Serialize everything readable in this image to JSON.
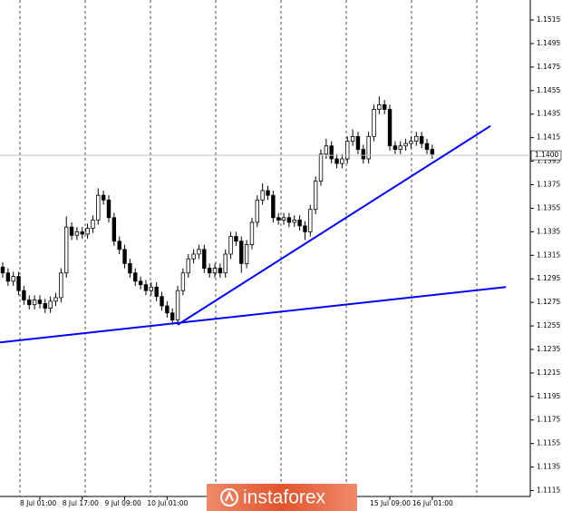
{
  "chart_data": {
    "type": "candlestick",
    "categories": [
      null,
      null,
      null,
      null,
      null,
      null,
      null,
      "8 Jul 01:00",
      null,
      null,
      null,
      null,
      null,
      null,
      null,
      "8 Jul 17:00",
      null,
      null,
      null,
      null,
      null,
      null,
      null,
      "9 Jul 09:00",
      null,
      null,
      null,
      null,
      null,
      null,
      null,
      "10 Jul 01:00",
      null,
      null,
      null,
      null,
      null,
      null,
      null,
      null,
      null,
      null,
      null,
      null,
      null,
      null,
      null,
      null,
      null,
      null,
      null,
      null,
      null,
      null,
      null,
      null,
      null,
      null,
      null,
      null,
      null,
      null,
      null,
      null,
      null,
      null,
      null,
      null,
      null,
      null,
      null,
      null,
      null,
      "15 Jul 09:00",
      null,
      null,
      null,
      null,
      null,
      null,
      null,
      "16 Jul 01:00"
    ],
    "series": [
      {
        "open": [
          1.1305,
          1.13,
          1.1293,
          1.1297,
          1.1285,
          1.1277,
          1.1273,
          1.1277,
          1.1274,
          1.127,
          1.1276,
          1.1279,
          1.13,
          1.1339,
          1.1332,
          1.1335,
          1.1333,
          1.1338,
          1.1345,
          1.1366,
          1.1362,
          1.1347,
          1.1327,
          1.132,
          1.1308,
          1.13,
          1.1293,
          1.129,
          1.1285,
          1.1288,
          1.128,
          1.1272,
          1.1266,
          1.126,
          1.1285,
          1.13,
          1.1312,
          1.1316,
          1.132,
          1.1304,
          1.13,
          1.1304,
          1.13,
          1.1316,
          1.1331,
          1.1327,
          1.1308,
          1.1324,
          1.1343,
          1.1362,
          1.137,
          1.1366,
          1.1347,
          1.1345,
          1.1347,
          1.1343,
          1.1345,
          1.134,
          1.1335,
          1.1354,
          1.1378,
          1.1401,
          1.1408,
          1.1397,
          1.1393,
          1.1397,
          1.1412,
          1.1416,
          1.1405,
          1.1397,
          1.1416,
          1.1439,
          1.1443,
          1.1439,
          1.1408,
          1.1405,
          1.1408,
          1.141,
          1.1412,
          1.1416,
          1.141,
          1.1405
        ],
        "high": [
          1.1309,
          1.1304,
          1.1301,
          1.1301,
          1.1289,
          1.1281,
          1.1281,
          1.1281,
          1.1278,
          1.128,
          1.1283,
          1.1304,
          1.1348,
          1.1343,
          1.1339,
          1.1339,
          1.1342,
          1.1349,
          1.1372,
          1.137,
          1.1366,
          1.1351,
          1.1331,
          1.1324,
          1.1312,
          1.1304,
          1.1297,
          1.1294,
          1.1292,
          1.1292,
          1.1284,
          1.1276,
          1.127,
          1.1289,
          1.1304,
          1.1316,
          1.132,
          1.1324,
          1.1324,
          1.1308,
          1.1308,
          1.1308,
          1.132,
          1.1335,
          1.1335,
          1.1331,
          1.1328,
          1.1347,
          1.1366,
          1.1376,
          1.1374,
          1.137,
          1.1351,
          1.1351,
          1.1351,
          1.1349,
          1.1349,
          1.1344,
          1.1358,
          1.1382,
          1.1405,
          1.1414,
          1.1412,
          1.1401,
          1.1401,
          1.1416,
          1.1422,
          1.142,
          1.1409,
          1.142,
          1.1443,
          1.145,
          1.1447,
          1.1443,
          1.1412,
          1.1412,
          1.1414,
          1.1416,
          1.142,
          1.142,
          1.1414,
          1.1409
        ],
        "low": [
          1.1296,
          1.1289,
          1.1289,
          1.1281,
          1.1273,
          1.1269,
          1.1269,
          1.127,
          1.1266,
          1.1266,
          1.1272,
          1.1275,
          1.1296,
          1.1328,
          1.1328,
          1.1329,
          1.1329,
          1.1334,
          1.1341,
          1.1358,
          1.1343,
          1.1323,
          1.1316,
          1.1304,
          1.1296,
          1.1289,
          1.1286,
          1.1281,
          1.1281,
          1.1276,
          1.1268,
          1.1262,
          1.1256,
          1.1256,
          1.1281,
          1.1296,
          1.1308,
          1.1312,
          1.13,
          1.1296,
          1.1296,
          1.1296,
          1.1296,
          1.1312,
          1.1323,
          1.13,
          1.1304,
          1.132,
          1.1339,
          1.1358,
          1.1362,
          1.1343,
          1.1341,
          1.1341,
          1.1339,
          1.1339,
          1.1336,
          1.1328,
          1.1331,
          1.135,
          1.1374,
          1.1397,
          1.1393,
          1.1389,
          1.1389,
          1.1393,
          1.1408,
          1.1401,
          1.1393,
          1.1393,
          1.1412,
          1.1435,
          1.1435,
          1.1404,
          1.1401,
          1.1401,
          1.1404,
          1.1406,
          1.1408,
          1.1406,
          1.1401,
          1.1397
        ],
        "close": [
          1.13,
          1.1293,
          1.1297,
          1.1285,
          1.1277,
          1.1273,
          1.1277,
          1.1274,
          1.127,
          1.1276,
          1.1279,
          1.13,
          1.1339,
          1.1332,
          1.1335,
          1.1333,
          1.1338,
          1.1345,
          1.1366,
          1.1362,
          1.1347,
          1.1327,
          1.132,
          1.1308,
          1.13,
          1.1293,
          1.129,
          1.1285,
          1.1288,
          1.128,
          1.1272,
          1.1266,
          1.126,
          1.1285,
          1.13,
          1.1312,
          1.1316,
          1.132,
          1.1304,
          1.13,
          1.1304,
          1.13,
          1.1316,
          1.1331,
          1.1327,
          1.1308,
          1.1324,
          1.1343,
          1.1362,
          1.137,
          1.1366,
          1.1347,
          1.1345,
          1.1347,
          1.1343,
          1.1345,
          1.134,
          1.1335,
          1.1354,
          1.1378,
          1.1401,
          1.1408,
          1.1397,
          1.1393,
          1.1397,
          1.1412,
          1.1416,
          1.1405,
          1.1397,
          1.1416,
          1.1439,
          1.1443,
          1.1439,
          1.1408,
          1.1405,
          1.1408,
          1.141,
          1.1412,
          1.1416,
          1.141,
          1.1405,
          1.1401
        ]
      }
    ],
    "up_color": "#ffffff",
    "down_color": "#000000",
    "wick_color": "#000000",
    "ylim": [
      1.111,
      1.1532
    ],
    "yticks": [
      1.1115,
      1.1135,
      1.1155,
      1.1175,
      1.1195,
      1.1215,
      1.1235,
      1.1255,
      1.1275,
      1.1295,
      1.1315,
      1.1335,
      1.1355,
      1.1375,
      1.1395,
      1.1415,
      1.1435,
      1.1455,
      1.1475,
      1.1495,
      1.1515
    ],
    "grid": false,
    "price_line": {
      "value": 1.14,
      "label": "1.1400",
      "color": "#c0c0c0"
    },
    "trendlines": [
      {
        "x": [
          -0.5,
          94.9
        ],
        "y": [
          1.1241,
          1.1288
        ],
        "color": "#0000ff"
      },
      {
        "x": [
          33,
          92
        ],
        "y": [
          1.1256,
          1.1425
        ],
        "color": "#0000ff"
      }
    ],
    "watermark": "instaforex"
  }
}
